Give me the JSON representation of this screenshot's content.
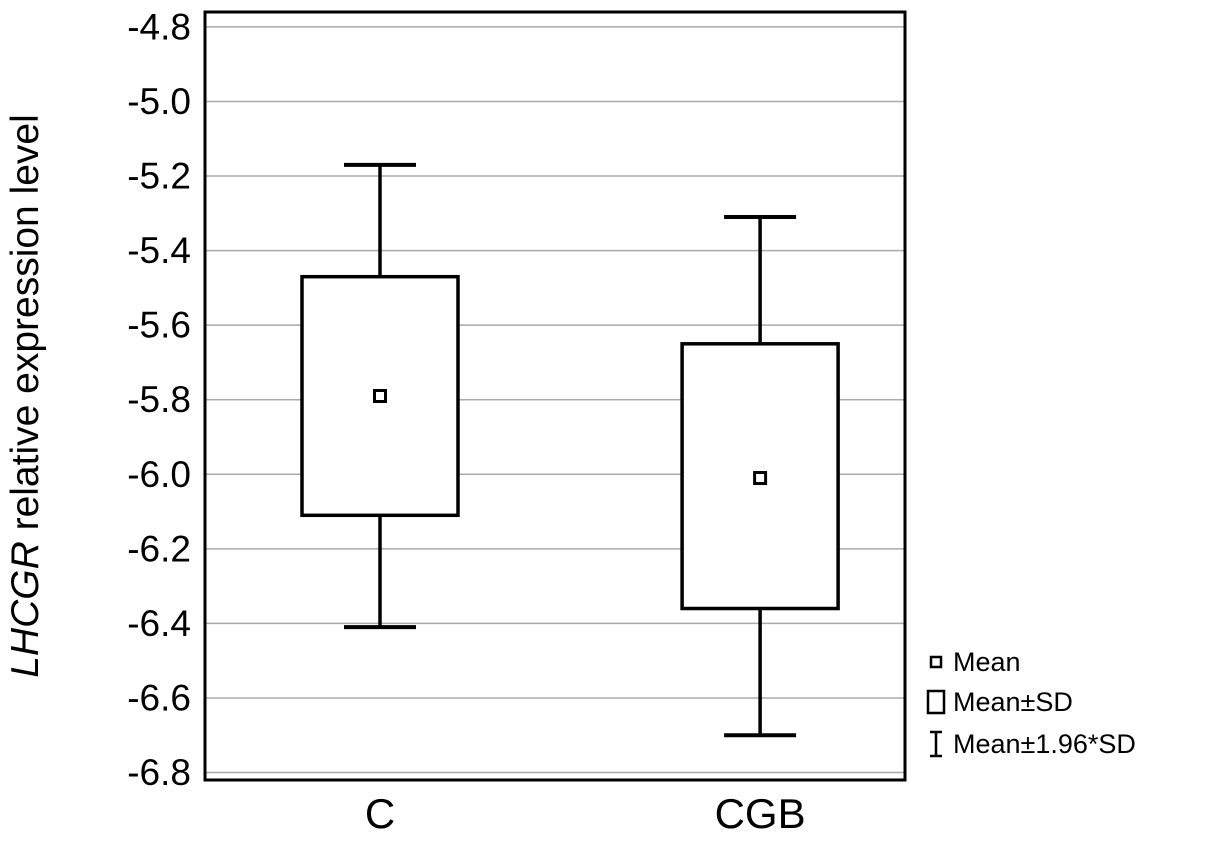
{
  "figure": {
    "background": "#ffffff"
  },
  "chart_data": {
    "type": "box",
    "title": "",
    "ylabel": {
      "italic": "LHCGR",
      "normal": " relative expression level"
    },
    "xlabel": "",
    "categories": [
      "C",
      "CGB"
    ],
    "yticks": [
      -4.8,
      -5.0,
      -5.2,
      -5.4,
      -5.6,
      -5.8,
      -6.0,
      -6.2,
      -6.4,
      -6.6,
      -6.8
    ],
    "ylim": [
      -6.82,
      -4.76
    ],
    "grid": true,
    "series": [
      {
        "category": "C",
        "mean": -5.79,
        "mean_minus_sd": -6.11,
        "mean_plus_sd": -5.47,
        "whisker_low": -6.41,
        "whisker_high": -5.17
      },
      {
        "category": "CGB",
        "mean": -6.01,
        "mean_minus_sd": -6.36,
        "mean_plus_sd": -5.65,
        "whisker_low": -6.7,
        "whisker_high": -5.31
      }
    ],
    "legend": {
      "position": "right-bottom",
      "items": [
        {
          "marker": "mean-square",
          "label": "Mean"
        },
        {
          "marker": "sd-box",
          "label": "Mean±SD"
        },
        {
          "marker": "whisker-ibeam",
          "label": "Mean±1.96*SD"
        }
      ]
    },
    "colors": {
      "line": "#000000",
      "grid": "#aaaaaa",
      "fill": "#ffffff",
      "text": "#000000"
    }
  }
}
